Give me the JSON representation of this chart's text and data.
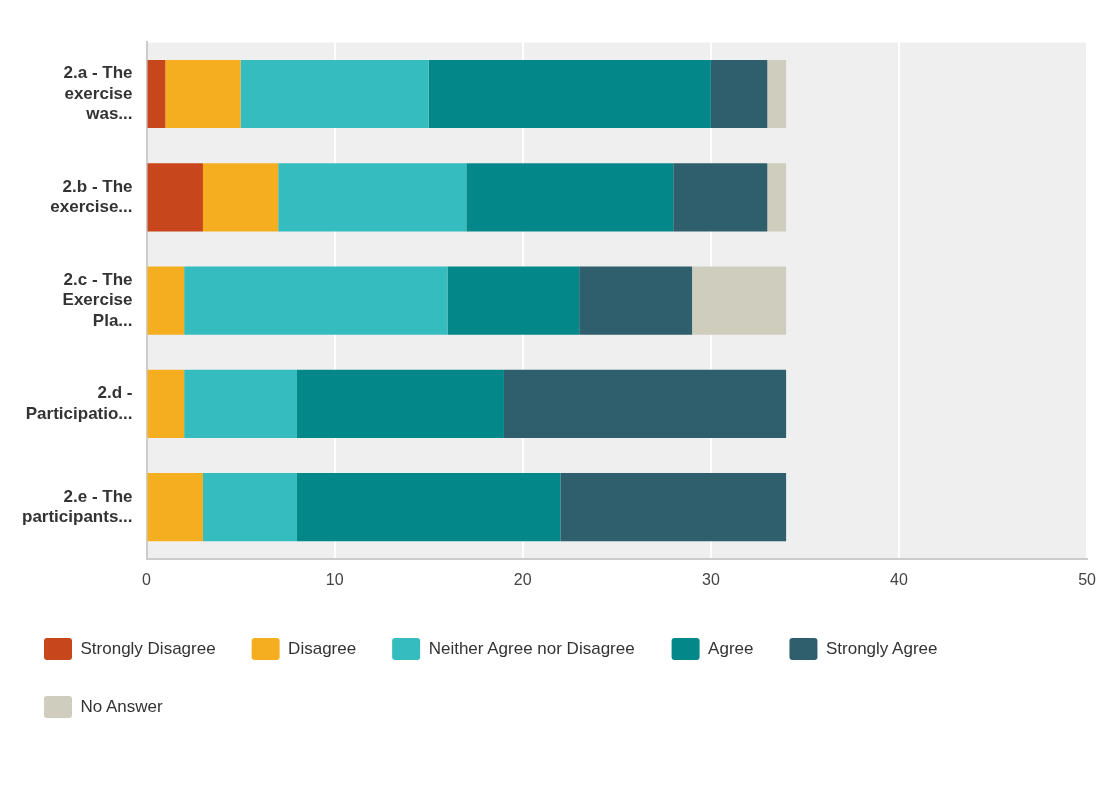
{
  "chart_data": {
    "type": "bar",
    "orientation": "horizontal",
    "stacked": true,
    "categories": [
      "2.a - The exercise was...",
      "2.b - The exercise...",
      "2.c - The Exercise Pla...",
      "2.d - Participatio...",
      "2.e - The participants..."
    ],
    "series": [
      {
        "name": "Strongly Disagree",
        "color": "#c8461b",
        "values": [
          1,
          3,
          0,
          0,
          0
        ]
      },
      {
        "name": "Disagree",
        "color": "#f5ae20",
        "values": [
          4,
          4,
          2,
          2,
          3
        ]
      },
      {
        "name": "Neither Agree nor Disagree",
        "color": "#35bcbf",
        "values": [
          10,
          10,
          14,
          6,
          5
        ]
      },
      {
        "name": "Agree",
        "color": "#038788",
        "values": [
          15,
          11,
          7,
          11,
          14
        ]
      },
      {
        "name": "Strongly Agree",
        "color": "#2f5f6d",
        "values": [
          3,
          5,
          6,
          15,
          12
        ]
      },
      {
        "name": "No Answer",
        "color": "#cecdbe",
        "values": [
          1,
          1,
          5,
          0,
          0
        ]
      }
    ],
    "xlim": [
      0,
      50
    ],
    "xticks": [
      0,
      10,
      20,
      30,
      40,
      50
    ],
    "grid": "x",
    "legend": "bottom"
  }
}
